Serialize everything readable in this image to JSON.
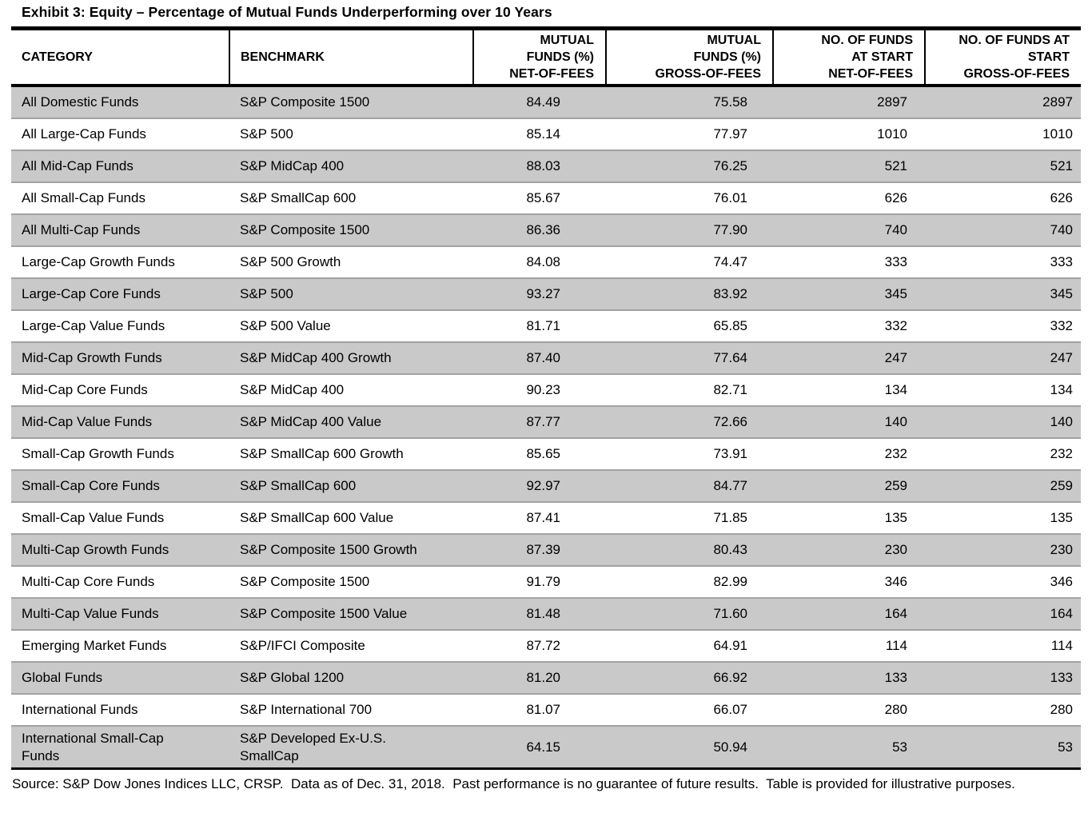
{
  "page": {
    "title": "Exhibit 3: Equity – Percentage of Mutual Funds Underperforming over 10 Years",
    "footer": "Source: S&P Dow Jones Indices LLC, CRSP.  Data as of Dec. 31, 2018.  Past performance is no guarantee of future results.  Table is provided for illustrative purposes."
  },
  "colors": {
    "stripe": "#c9c9c9",
    "row_separator": "#a2a2a2",
    "border": "#000000"
  },
  "table": {
    "headers": [
      {
        "lines": [
          "CATEGORY"
        ],
        "align": "left"
      },
      {
        "lines": [
          "BENCHMARK"
        ],
        "align": "left"
      },
      {
        "lines": [
          "MUTUAL",
          "FUNDS (%)",
          "NET-OF-FEES"
        ],
        "align": "right"
      },
      {
        "lines": [
          "MUTUAL",
          "FUNDS (%)",
          "GROSS-OF-FEES"
        ],
        "align": "right"
      },
      {
        "lines": [
          "NO. OF FUNDS",
          "AT START",
          "NET-OF-FEES"
        ],
        "align": "right"
      },
      {
        "lines": [
          "NO. OF FUNDS AT",
          "START",
          "GROSS-OF-FEES"
        ],
        "align": "right"
      }
    ],
    "rows": [
      [
        "All Domestic Funds",
        "S&P Composite 1500",
        "84.49",
        "75.58",
        "2897",
        "2897"
      ],
      [
        "All Large-Cap Funds",
        "S&P 500",
        "85.14",
        "77.97",
        "1010",
        "1010"
      ],
      [
        "All Mid-Cap Funds",
        "S&P MidCap 400",
        "88.03",
        "76.25",
        "521",
        "521"
      ],
      [
        "All Small-Cap Funds",
        "S&P SmallCap 600",
        "85.67",
        "76.01",
        "626",
        "626"
      ],
      [
        "All Multi-Cap Funds",
        "S&P Composite 1500",
        "86.36",
        "77.90",
        "740",
        "740"
      ],
      [
        "Large-Cap Growth Funds",
        "S&P 500 Growth",
        "84.08",
        "74.47",
        "333",
        "333"
      ],
      [
        "Large-Cap Core Funds",
        "S&P 500",
        "93.27",
        "83.92",
        "345",
        "345"
      ],
      [
        "Large-Cap Value Funds",
        "S&P 500 Value",
        "81.71",
        "65.85",
        "332",
        "332"
      ],
      [
        "Mid-Cap Growth Funds",
        "S&P MidCap 400 Growth",
        "87.40",
        "77.64",
        "247",
        "247"
      ],
      [
        "Mid-Cap Core Funds",
        "S&P MidCap 400",
        "90.23",
        "82.71",
        "134",
        "134"
      ],
      [
        "Mid-Cap Value Funds",
        "S&P MidCap 400 Value",
        "87.77",
        "72.66",
        "140",
        "140"
      ],
      [
        "Small-Cap Growth Funds",
        "S&P SmallCap 600 Growth",
        "85.65",
        "73.91",
        "232",
        "232"
      ],
      [
        "Small-Cap Core Funds",
        "S&P SmallCap 600",
        "92.97",
        "84.77",
        "259",
        "259"
      ],
      [
        "Small-Cap Value Funds",
        "S&P SmallCap 600 Value",
        "87.41",
        "71.85",
        "135",
        "135"
      ],
      [
        "Multi-Cap Growth Funds",
        "S&P Composite 1500 Growth",
        "87.39",
        "80.43",
        "230",
        "230"
      ],
      [
        "Multi-Cap Core Funds",
        "S&P Composite 1500",
        "91.79",
        "82.99",
        "346",
        "346"
      ],
      [
        "Multi-Cap Value Funds",
        "S&P Composite 1500 Value",
        "81.48",
        "71.60",
        "164",
        "164"
      ],
      [
        "Emerging Market Funds",
        "S&P/IFCI Composite",
        "87.72",
        "64.91",
        "114",
        "114"
      ],
      [
        "Global Funds",
        "S&P Global 1200",
        "81.20",
        "66.92",
        "133",
        "133"
      ],
      [
        "International Funds",
        "S&P International 700",
        "81.07",
        "66.07",
        "280",
        "280"
      ],
      [
        [
          "International Small-Cap",
          "Funds"
        ],
        [
          "S&P Developed Ex-U.S.",
          "SmallCap"
        ],
        "64.15",
        "50.94",
        "53",
        "53"
      ]
    ]
  }
}
